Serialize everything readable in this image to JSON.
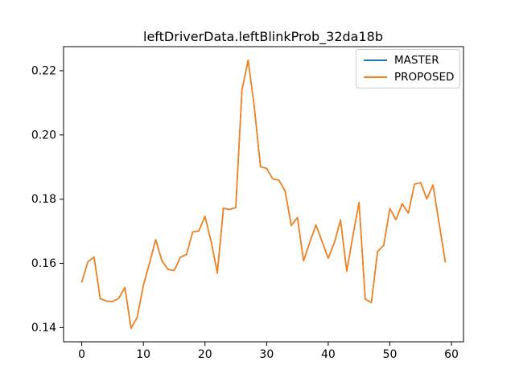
{
  "figure": {
    "title": "leftDriverData.leftBlinkProb_32da18b",
    "background": "#ffffff"
  },
  "legend": {
    "position": "upper right",
    "entries": [
      {
        "label": "MASTER",
        "color": "#1f77b4"
      },
      {
        "label": "PROPOSED",
        "color": "#ff7f0e"
      }
    ]
  },
  "chart_data": {
    "type": "line",
    "title": "leftDriverData.leftBlinkProb_32da18b",
    "xlabel": "",
    "ylabel": "",
    "grid": false,
    "legend_position": "upper right",
    "xlim": [
      -2.95,
      61.95
    ],
    "ylim": [
      0.1356,
      0.2275
    ],
    "x_ticks": [
      0,
      10,
      20,
      30,
      40,
      50,
      60
    ],
    "x_tick_labels": [
      "0",
      "10",
      "20",
      "30",
      "40",
      "50",
      "60"
    ],
    "y_ticks": [
      0.14,
      0.16,
      0.18,
      0.2,
      0.22
    ],
    "y_tick_labels": [
      "0.14",
      "0.16",
      "0.18",
      "0.20",
      "0.22"
    ],
    "x": [
      0,
      1,
      2,
      3,
      4,
      5,
      6,
      7,
      8,
      9,
      10,
      11,
      12,
      13,
      14,
      15,
      16,
      17,
      18,
      19,
      20,
      21,
      22,
      23,
      24,
      25,
      26,
      27,
      28,
      29,
      30,
      31,
      32,
      33,
      34,
      35,
      36,
      37,
      38,
      39,
      40,
      41,
      42,
      43,
      44,
      45,
      46,
      47,
      48,
      49,
      50,
      51,
      52,
      53,
      54,
      55,
      56,
      57,
      58,
      59
    ],
    "series": [
      {
        "name": "MASTER",
        "color": "#1f77b4",
        "values": [
          0.1542,
          0.1605,
          0.162,
          0.149,
          0.1483,
          0.1481,
          0.1491,
          0.1525,
          0.1398,
          0.1432,
          0.1532,
          0.1601,
          0.1674,
          0.1609,
          0.1581,
          0.1578,
          0.1619,
          0.1628,
          0.1698,
          0.1701,
          0.1747,
          0.1668,
          0.157,
          0.1772,
          0.1768,
          0.1774,
          0.214,
          0.2233,
          0.2088,
          0.1901,
          0.1896,
          0.1863,
          0.1859,
          0.1826,
          0.1718,
          0.1743,
          0.1608,
          0.1665,
          0.172,
          0.1668,
          0.1616,
          0.1665,
          0.1735,
          0.1576,
          0.1685,
          0.179,
          0.1489,
          0.1478,
          0.1637,
          0.1656,
          0.1771,
          0.1736,
          0.1786,
          0.1757,
          0.1847,
          0.1851,
          0.1801,
          0.1844,
          0.1723,
          0.1605
        ]
      },
      {
        "name": "PROPOSED",
        "color": "#ff7f0e",
        "values": [
          0.1542,
          0.1605,
          0.162,
          0.149,
          0.1483,
          0.1481,
          0.1491,
          0.1525,
          0.1398,
          0.1432,
          0.1532,
          0.1601,
          0.1674,
          0.1609,
          0.1581,
          0.1578,
          0.1619,
          0.1628,
          0.1698,
          0.1701,
          0.1747,
          0.1668,
          0.157,
          0.1772,
          0.1768,
          0.1774,
          0.214,
          0.2233,
          0.2088,
          0.1901,
          0.1896,
          0.1863,
          0.1859,
          0.1826,
          0.1718,
          0.1743,
          0.1608,
          0.1665,
          0.172,
          0.1668,
          0.1616,
          0.1665,
          0.1735,
          0.1576,
          0.1685,
          0.179,
          0.1489,
          0.1478,
          0.1637,
          0.1656,
          0.1771,
          0.1736,
          0.1786,
          0.1757,
          0.1847,
          0.1851,
          0.1801,
          0.1844,
          0.1723,
          0.1605
        ]
      }
    ]
  }
}
